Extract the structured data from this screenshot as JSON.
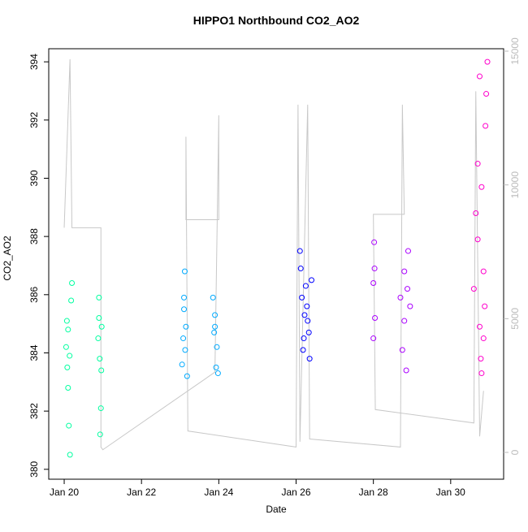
{
  "chart_data": {
    "type": "scatter",
    "title": "HIPPO1 Northbound CO2_AO2",
    "x_label": "Date",
    "y_label": "CO2_AO2",
    "xlim": [
      19.6,
      31.37
    ],
    "xticks": [
      {
        "value": 20,
        "label": "Jan 20"
      },
      {
        "value": 22,
        "label": "Jan 22"
      },
      {
        "value": 24,
        "label": "Jan 24"
      },
      {
        "value": 26,
        "label": "Jan 26"
      },
      {
        "value": 28,
        "label": "Jan 28"
      },
      {
        "value": 30,
        "label": "Jan 30"
      }
    ],
    "ylim": [
      379.66,
      394.45
    ],
    "yticks": [
      380,
      382,
      384,
      386,
      388,
      390,
      392,
      394
    ],
    "y2lim": [
      -1002,
      15091
    ],
    "y2ticks": [
      0,
      5000,
      10000,
      15000
    ],
    "series": [
      {
        "color": "#00ffa0",
        "x": [
          20.05,
          20.08,
          20.1,
          20.12,
          20.15,
          20.18,
          20.2,
          20.1,
          20.14,
          20.07,
          20.88,
          20.9,
          20.92,
          20.95,
          20.97,
          20.9,
          20.93,
          20.96
        ],
        "values": [
          384.2,
          383.5,
          382.8,
          381.5,
          380.5,
          385.8,
          386.4,
          384.8,
          383.9,
          385.1,
          384.5,
          385.2,
          383.8,
          382.1,
          384.9,
          385.9,
          381.2,
          383.4
        ]
      },
      {
        "color": "#00aaff",
        "x": [
          23.05,
          23.08,
          23.1,
          23.12,
          23.15,
          23.18,
          23.1,
          23.13,
          23.85,
          23.88,
          23.9,
          23.93,
          23.95,
          23.98,
          23.9
        ],
        "values": [
          383.6,
          384.5,
          385.5,
          386.8,
          384.9,
          383.2,
          385.9,
          384.1,
          385.9,
          384.7,
          385.3,
          383.5,
          384.2,
          383.3,
          384.9
        ]
      },
      {
        "color": "#0000ff",
        "x": [
          26.1,
          26.15,
          26.2,
          26.25,
          26.3,
          26.35,
          26.4,
          26.18,
          26.28,
          26.12,
          26.33,
          26.22
        ],
        "values": [
          387.5,
          385.9,
          384.5,
          386.3,
          385.1,
          383.8,
          386.5,
          384.1,
          385.6,
          386.9,
          384.7,
          385.3
        ]
      },
      {
        "color": "#aa00ff",
        "x": [
          28.0,
          28.02,
          28.04,
          28.0,
          28.03,
          28.7,
          28.75,
          28.8,
          28.85,
          28.9,
          28.95,
          28.8,
          28.88
        ],
        "values": [
          386.4,
          387.8,
          385.2,
          384.5,
          386.9,
          385.9,
          384.1,
          386.8,
          383.4,
          387.5,
          385.6,
          385.1,
          386.2
        ]
      },
      {
        "color": "#ff00cc",
        "x": [
          30.6,
          30.65,
          30.7,
          30.75,
          30.8,
          30.85,
          30.9,
          30.95,
          30.7,
          30.8,
          30.88,
          30.92,
          30.75,
          30.85,
          30.78
        ],
        "values": [
          386.2,
          388.8,
          390.5,
          393.5,
          383.3,
          384.5,
          391.8,
          394.0,
          387.9,
          389.7,
          385.6,
          392.9,
          384.9,
          386.8,
          383.8
        ]
      },
      {
        "axis": "y2",
        "color": "#c8c8c8",
        "x": [
          20.0,
          20.15,
          20.2,
          20.95,
          20.95,
          21.0,
          23.9,
          24.0,
          24.0,
          23.15,
          23.15,
          23.2,
          26.0,
          26.05,
          26.1,
          26.3,
          26.35,
          28.7,
          28.75,
          28.8,
          28.0,
          28.05,
          30.6,
          30.65,
          30.75,
          30.85
        ],
        "values": [
          8400,
          14700,
          8400,
          8400,
          200,
          100,
          3000,
          12600,
          8700,
          8700,
          11800,
          800,
          200,
          13000,
          400,
          13000,
          500,
          200,
          13000,
          8900,
          8900,
          1600,
          1100,
          13500,
          600,
          2300
        ]
      }
    ]
  }
}
